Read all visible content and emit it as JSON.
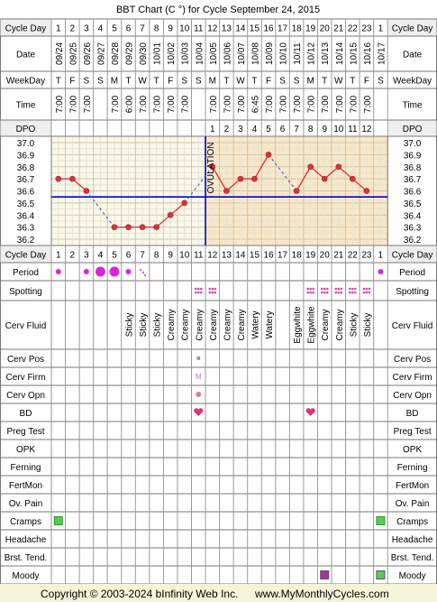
{
  "title": "BBT Chart (C °) for Cycle September 24, 2015",
  "footer": {
    "copyright": "Copyright © 2003-2024 bInfinity Web Inc.",
    "site": "www.MyMonthlyCycles.com"
  },
  "row_labels": {
    "cycle_day": "Cycle Day",
    "date": "Date",
    "weekday": "WeekDay",
    "time": "Time",
    "dpo": "DPO",
    "period": "Period",
    "spotting": "Spotting",
    "cerv_fluid": "Cerv Fluid",
    "cerv_pos": "Cerv Pos",
    "cerv_firm": "Cerv Firm",
    "cerv_opn": "Cerv Opn",
    "bd": "BD",
    "preg_test": "Preg Test",
    "opk": "OPK",
    "ferning": "Ferning",
    "fertmon": "FertMon",
    "ov_pain": "Ov. Pain",
    "cramps": "Cramps",
    "headache": "Headache",
    "brst_tend": "Brst. Tend.",
    "moody": "Moody"
  },
  "ovulation_label": "OVULATION",
  "cycle_days": [
    "1",
    "2",
    "3",
    "4",
    "5",
    "6",
    "7",
    "8",
    "9",
    "10",
    "11",
    "12",
    "13",
    "14",
    "15",
    "16",
    "17",
    "18",
    "19",
    "20",
    "21",
    "22",
    "23",
    "1"
  ],
  "dates": [
    "09/24",
    "09/25",
    "09/26",
    "09/27",
    "09/28",
    "09/29",
    "09/30",
    "10/01",
    "10/02",
    "10/03",
    "10/04",
    "10/05",
    "10/06",
    "10/07",
    "10/08",
    "10/09",
    "10/10",
    "10/11",
    "10/12",
    "10/13",
    "10/14",
    "10/15",
    "10/16",
    "10/17"
  ],
  "weekdays": [
    "T",
    "F",
    "S",
    "S",
    "M",
    "T",
    "W",
    "T",
    "F",
    "S",
    "S",
    "M",
    "T",
    "W",
    "T",
    "F",
    "S",
    "S",
    "M",
    "T",
    "W",
    "T",
    "F",
    "S"
  ],
  "times": [
    "7:00",
    "7:00",
    "7:00",
    "",
    "7:00",
    "6:00",
    "7:00",
    "7:00",
    "7:00",
    "7:00",
    "",
    "7:00",
    "7:00",
    "7:00",
    "6:45",
    "7:00",
    "7:00",
    "7:00",
    "7:00",
    "7:00",
    "7:00",
    "7:00",
    "7:00",
    ""
  ],
  "dpo": [
    "",
    "",
    "",
    "",
    "",
    "",
    "",
    "",
    "",
    "",
    "",
    "1",
    "2",
    "3",
    "4",
    "5",
    "6",
    "7",
    "8",
    "9",
    "10",
    "11",
    "12",
    ""
  ],
  "cerv_fluid": [
    "",
    "",
    "",
    "",
    "",
    "Sticky",
    "Sticky",
    "Sticky",
    "Creamy",
    "Creamy",
    "Creamy",
    "Creamy",
    "Creamy",
    "Creamy",
    "Watery",
    "Watery",
    "",
    "Eggwhite",
    "Eggwhite",
    "Creamy",
    "Creamy",
    "Sticky",
    "Sticky",
    ""
  ],
  "period": [
    "small",
    "",
    "small",
    "large",
    "large",
    "small",
    "spot",
    "",
    "",
    "",
    "",
    "",
    "",
    "",
    "",
    "",
    "",
    "",
    "",
    "",
    "",
    "",
    "",
    "small"
  ],
  "spotting": [
    11,
    12,
    19,
    20,
    21,
    22,
    23
  ],
  "cerv_pos_day": 11,
  "cerv_firm": {
    "day": 11,
    "text": "M"
  },
  "cerv_opn_day": 11,
  "bd_days": [
    11,
    19
  ],
  "cramps_days": [
    1,
    24
  ],
  "moody_days": [
    20,
    24
  ],
  "colors": {
    "period": "#dd22dd",
    "spotting": "#dd44aa",
    "temp_line": "#dd3333",
    "coverline": "#0000cc",
    "cramps": "#55cc55",
    "moody_a": "#aa3399",
    "moody_b": "#55cc55",
    "bd": "#dd3377",
    "pre_ov_bg": "#fbf8ea",
    "post_ov_bg": "#fbe7c8",
    "footer_bg": "#f4f4d8"
  },
  "chart_data": {
    "type": "line",
    "title": "BBT Chart (C °) for Cycle September 24, 2015",
    "xlabel": "Cycle Day",
    "ylabel": "",
    "ylim": [
      36.2,
      37.0
    ],
    "y_ticks": [
      "37.0",
      "36.9",
      "36.8",
      "36.7",
      "36.6",
      "36.5",
      "36.4",
      "36.3",
      "36.2"
    ],
    "x": [
      1,
      2,
      3,
      4,
      5,
      6,
      7,
      8,
      9,
      10,
      11,
      12,
      13,
      14,
      15,
      16,
      17,
      18,
      19,
      20,
      21,
      22,
      23,
      24
    ],
    "temps": [
      36.7,
      36.7,
      36.6,
      null,
      36.3,
      36.3,
      36.3,
      36.3,
      36.4,
      36.5,
      null,
      36.8,
      36.6,
      36.7,
      36.7,
      36.9,
      null,
      36.6,
      36.8,
      36.7,
      36.8,
      36.7,
      36.6,
      null
    ],
    "coverline": 36.55,
    "ovulation_day": 11,
    "grid": true
  }
}
